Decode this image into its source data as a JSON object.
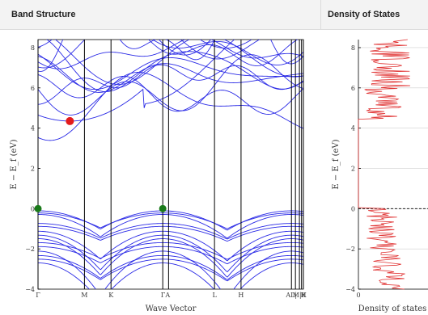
{
  "header": {
    "band_structure_title": "Band Structure",
    "density_of_states_title": "Density of States"
  },
  "colors": {
    "band_line": "#2a2ae6",
    "dos_line": "#e03131",
    "kpath_line": "#000000",
    "cbm_marker": "#e31a1c",
    "vbm_marker": "#1a7a1a",
    "header_bg": "#f3f3f3"
  },
  "chart_data": [
    {
      "type": "line",
      "title": "Band Structure",
      "xlabel": "Wave Vector",
      "ylabel": "E − E_f (eV)",
      "ylim": [
        -4,
        8.4
      ],
      "yticks": [
        -4,
        -2,
        0,
        2,
        4,
        6,
        8
      ],
      "kpoints": [
        {
          "label": "Γ",
          "x": 0.0
        },
        {
          "label": "M",
          "x": 0.175
        },
        {
          "label": "K",
          "x": 0.275
        },
        {
          "label": "Γ",
          "x": 0.47
        },
        {
          "label": "A",
          "x": 0.492
        },
        {
          "label": "L",
          "x": 0.665
        },
        {
          "label": "H",
          "x": 0.765
        },
        {
          "label": "A",
          "x": 0.955
        },
        {
          "label": "L",
          "x": 0.97
        },
        {
          "label": "M",
          "x": 0.985
        },
        {
          "label": "K",
          "x": 0.993
        },
        {
          "label": "H",
          "x": 1.0
        }
      ],
      "tick_labels": [
        "Γ",
        "M",
        "K",
        "ΓA",
        "L",
        "H",
        "AL|",
        "M|K",
        "H"
      ],
      "cbm": {
        "x": 0.12,
        "y": 4.35
      },
      "vbm": [
        {
          "x": 0.0,
          "y": 0.0
        },
        {
          "x": 0.47,
          "y": 0.0
        }
      ],
      "fermi_level": 0,
      "grid": false
    },
    {
      "type": "line",
      "title": "Density of States",
      "xlabel": "Density of states",
      "ylabel": "E − E_f (eV)",
      "ylim": [
        -4,
        8.4
      ],
      "yticks": [
        -4,
        -2,
        0,
        2,
        4,
        6,
        8
      ],
      "xticks": [
        0
      ],
      "fermi_level": 0,
      "gap": [
        0.05,
        4.45
      ],
      "grid": true
    }
  ]
}
